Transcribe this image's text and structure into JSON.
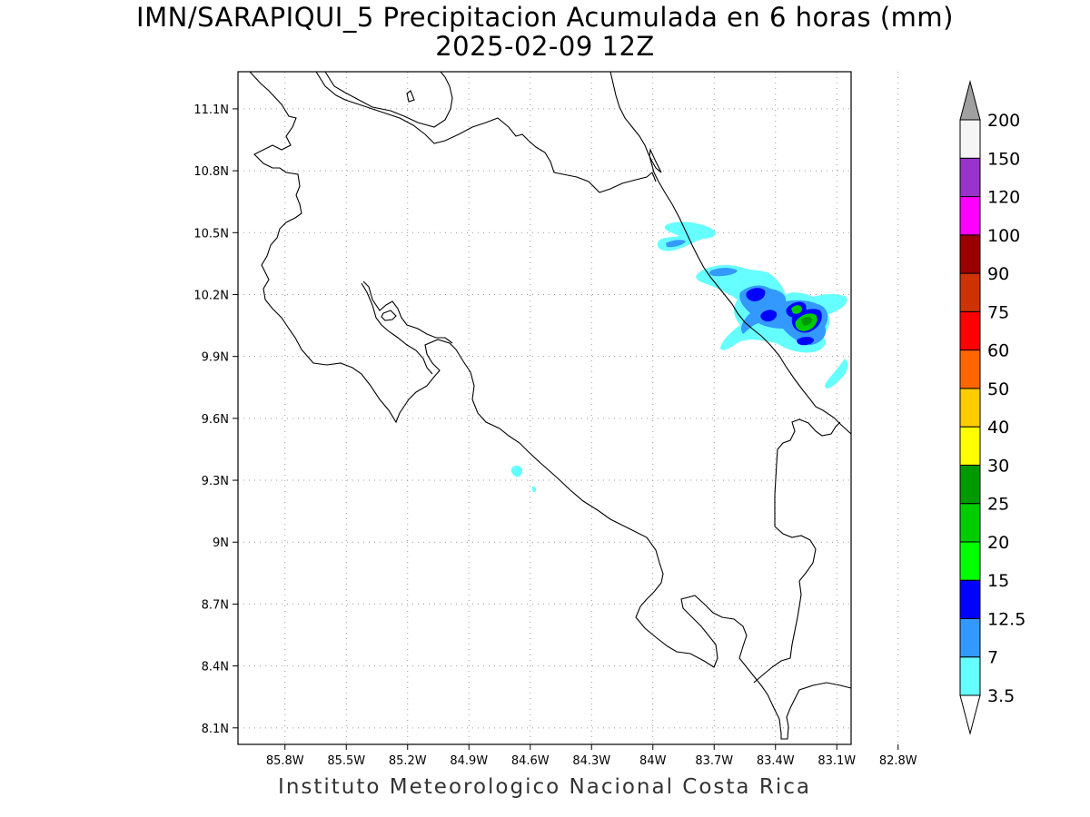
{
  "title": {
    "line1": "IMN/SARAPIQUI_5 Precipitacion Acumulada en 6 horas (mm)",
    "line2": "2025-02-09 12Z"
  },
  "footer": "Instituto Meteorologico Nacional Costa Rica",
  "map": {
    "lon_range": [
      -86.03,
      -83.03
    ],
    "lat_range": [
      8.02,
      11.28
    ],
    "x_ticks": [
      {
        "value": -85.8,
        "label": "85.8W"
      },
      {
        "value": -85.5,
        "label": "85.5W"
      },
      {
        "value": -85.2,
        "label": "85.2W"
      },
      {
        "value": -84.9,
        "label": "84.9W"
      },
      {
        "value": -84.6,
        "label": "84.6W"
      },
      {
        "value": -84.3,
        "label": "84.3W"
      },
      {
        "value": -84.0,
        "label": "84W"
      },
      {
        "value": -83.7,
        "label": "83.7W"
      },
      {
        "value": -83.4,
        "label": "83.4W"
      },
      {
        "value": -83.1,
        "label": "83.1W"
      },
      {
        "value": -82.8,
        "label": "82.8W"
      }
    ],
    "y_ticks": [
      {
        "value": 11.1,
        "label": "11.1N"
      },
      {
        "value": 10.8,
        "label": "10.8N"
      },
      {
        "value": 10.5,
        "label": "10.5N"
      },
      {
        "value": 10.2,
        "label": "10.2N"
      },
      {
        "value": 9.9,
        "label": "9.9N"
      },
      {
        "value": 9.6,
        "label": "9.6N"
      },
      {
        "value": 9.3,
        "label": "9.3N"
      },
      {
        "value": 9.0,
        "label": "9N"
      },
      {
        "value": 8.7,
        "label": "8.7N"
      },
      {
        "value": 8.4,
        "label": "8.4N"
      },
      {
        "value": 8.1,
        "label": "8.1N"
      }
    ],
    "grid": "dotted"
  },
  "colorbar": {
    "levels": [
      {
        "label": "3.5",
        "color": "#66ffff"
      },
      {
        "label": "7",
        "color": "#3399ff"
      },
      {
        "label": "12.5",
        "color": "#0000ff"
      },
      {
        "label": "15",
        "color": "#00ff00"
      },
      {
        "label": "20",
        "color": "#00cc00"
      },
      {
        "label": "25",
        "color": "#009900"
      },
      {
        "label": "30",
        "color": "#ffff00"
      },
      {
        "label": "40",
        "color": "#ffcc00"
      },
      {
        "label": "50",
        "color": "#ff6600"
      },
      {
        "label": "60",
        "color": "#ff0000"
      },
      {
        "label": "75",
        "color": "#cc3300"
      },
      {
        "label": "90",
        "color": "#990000"
      },
      {
        "label": "100",
        "color": "#ff00ff"
      },
      {
        "label": "120",
        "color": "#9933cc"
      },
      {
        "label": "150",
        "color": "#f5f5f5"
      },
      {
        "label": "200",
        "color": "#a0a0a0"
      }
    ]
  }
}
